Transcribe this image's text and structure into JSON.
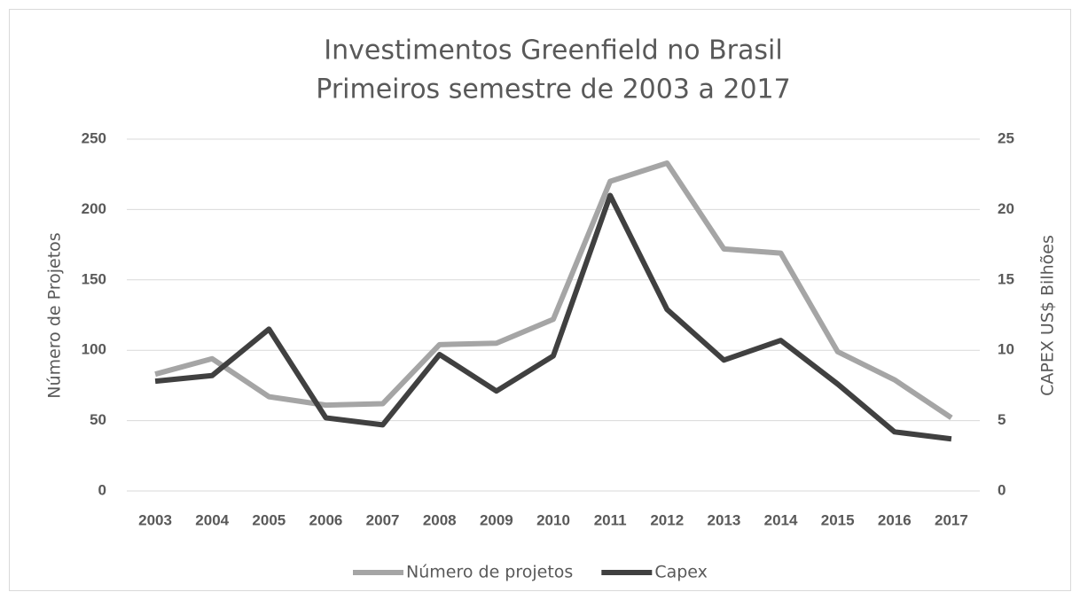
{
  "chart_data": {
    "type": "line",
    "title": "Investimentos Greenfield no Brasil",
    "subtitle": "Primeiros semestre de 2003 a 2017",
    "y_label": "Número de Projetos",
    "y2_label": "CAPEX US$ Bilhões",
    "categories": [
      "2003",
      "2004",
      "2005",
      "2006",
      "2007",
      "2008",
      "2009",
      "2010",
      "2011",
      "2012",
      "2013",
      "2014",
      "2015",
      "2016",
      "2017"
    ],
    "series": [
      {
        "name": "Número de projetos",
        "color": "#a5a5a5",
        "values": [
          83,
          94,
          67,
          61,
          62,
          104,
          105,
          122,
          220,
          233,
          172,
          169,
          99,
          79,
          52
        ]
      },
      {
        "name": "Capex",
        "color": "#404040",
        "axis": "y2",
        "values": [
          7.8,
          8.2,
          11.5,
          5.2,
          4.7,
          9.7,
          7.1,
          9.6,
          21.0,
          12.9,
          9.3,
          10.7,
          7.6,
          4.2,
          3.7
        ]
      }
    ],
    "ylim": [
      0,
      250
    ],
    "yticks": [
      0,
      50,
      100,
      150,
      200,
      250
    ],
    "y2lim": [
      0,
      25
    ],
    "y2ticks": [
      0,
      5,
      10,
      15,
      20,
      25
    ],
    "grid": true,
    "legend": "bottom"
  }
}
